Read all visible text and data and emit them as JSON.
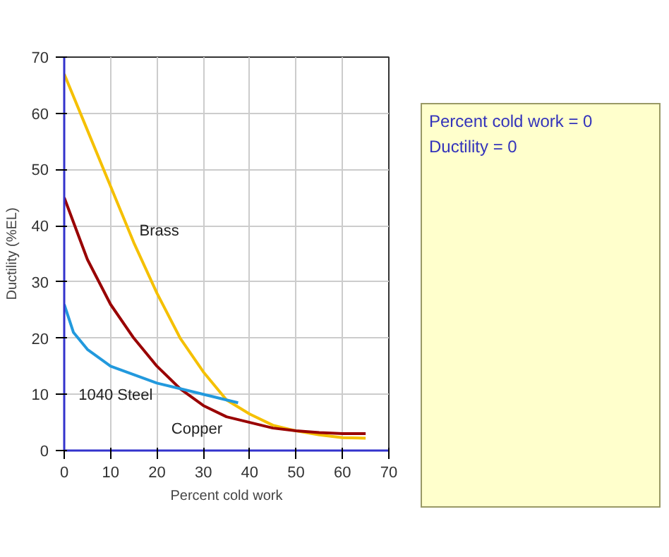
{
  "chart_data": {
    "type": "line",
    "xlabel": "Percent cold work",
    "ylabel": "Ductility (%EL)",
    "xlim": [
      0,
      70
    ],
    "ylim": [
      0,
      70
    ],
    "xticks": [
      0,
      10,
      20,
      30,
      40,
      50,
      60,
      70
    ],
    "yticks": [
      0,
      10,
      20,
      30,
      40,
      50,
      60,
      70
    ],
    "grid": true,
    "marker": "none",
    "line_style": "solid",
    "series": [
      {
        "color": "#f5c000",
        "x": [
          0,
          5,
          10,
          15,
          20,
          25,
          30,
          35,
          40,
          45,
          50,
          55,
          60,
          65
        ],
        "values": [
          67,
          57,
          47,
          37,
          28,
          20,
          14,
          9,
          6.5,
          4.5,
          3.5,
          2.8,
          2.3,
          2.2
        ]
      },
      {
        "color": "#990000",
        "x": [
          0,
          5,
          10,
          15,
          20,
          25,
          30,
          35,
          40,
          45,
          50,
          55,
          60,
          65
        ],
        "values": [
          45,
          34,
          26,
          20,
          15,
          11,
          8,
          6,
          5,
          4,
          3.5,
          3.2,
          3,
          3
        ]
      },
      {
        "color": "#2299dd",
        "x": [
          0,
          2,
          5,
          10,
          15,
          20,
          25,
          30,
          35,
          37.5
        ],
        "values": [
          26,
          21,
          18,
          15,
          13.5,
          12,
          11,
          10,
          9,
          8.5
        ]
      }
    ],
    "annotations": [
      {
        "text": "Brass",
        "x": 15,
        "y": 37
      },
      {
        "text": "1040 Steel",
        "x": 20,
        "y": 12
      },
      {
        "text": "Copper",
        "x": 35,
        "y": 6
      },
      "Percent cold work = 0",
      "Ductility = 0"
    ]
  }
}
